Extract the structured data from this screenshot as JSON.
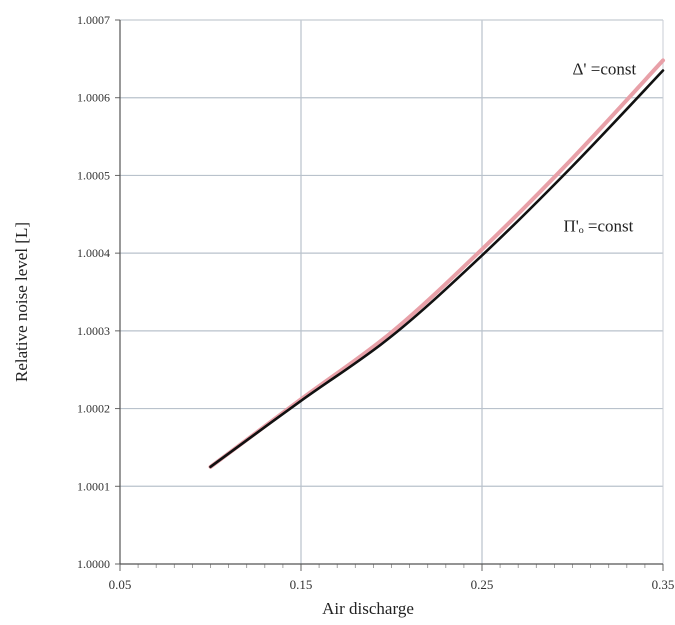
{
  "chart_data": {
    "type": "line",
    "xlabel": "Air discharge",
    "ylabel": "Relative noise level [L]",
    "xlim": [
      0.05,
      0.35
    ],
    "ylim": [
      1.0,
      1.0007
    ],
    "x_ticks": [
      0.05,
      0.15,
      0.25,
      0.35
    ],
    "x_tick_labels": [
      "0.05",
      "0.15",
      "0.25",
      "0.35"
    ],
    "y_ticks": [
      1.0,
      1.0001,
      1.0002,
      1.0003,
      1.0004,
      1.0005,
      1.0006,
      1.0007
    ],
    "y_tick_labels": [
      "1.0000",
      "1.0001",
      "1.0002",
      "1.0003",
      "1.0004",
      "1.0005",
      "1.0006",
      "1.0007"
    ],
    "grid": true,
    "x_minor_ticks_per_major": 10,
    "series": [
      {
        "name": "Δ' =const",
        "color": "#e8a0a8",
        "x": [
          0.1,
          0.15,
          0.2,
          0.25,
          0.3,
          0.35
        ],
        "y": [
          1.000125,
          1.000212,
          1.000298,
          1.000405,
          1.000522,
          1.000648
        ]
      },
      {
        "name": "Π'ₒ =const",
        "color": "#111111",
        "x": [
          0.1,
          0.15,
          0.2,
          0.25,
          0.3,
          0.35
        ],
        "y": [
          1.000125,
          1.00021,
          1.000293,
          1.000397,
          1.000512,
          1.000635
        ]
      }
    ],
    "annotations": [
      {
        "text": "Δ' =const",
        "x": 0.3,
        "y": 1.00063
      },
      {
        "text": "Π'ₒ =const",
        "x": 0.295,
        "y": 1.000428
      }
    ]
  }
}
